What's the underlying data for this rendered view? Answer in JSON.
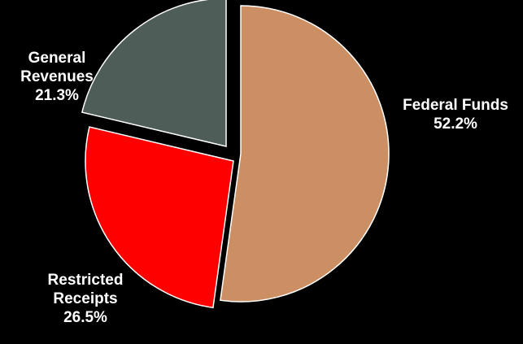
{
  "chart_data": {
    "type": "pie",
    "title": "",
    "slices": [
      {
        "name": "Federal Funds",
        "label_lines": [
          "Federal Funds",
          "52.2%"
        ],
        "value": 52.2,
        "color": "#CC8E63"
      },
      {
        "name": "Restricted Receipts",
        "label_lines": [
          "Restricted",
          "Receipts",
          "26.5%"
        ],
        "value": 26.5,
        "color": "#FF0000"
      },
      {
        "name": "General Revenues",
        "label_lines": [
          "General",
          "Revenues",
          "21.3%"
        ],
        "value": 21.3,
        "color": "#4E5D58"
      }
    ],
    "background": "#000000",
    "slice_outline": "#FFFFFF",
    "legend": "none",
    "labels": "outside-slice"
  }
}
